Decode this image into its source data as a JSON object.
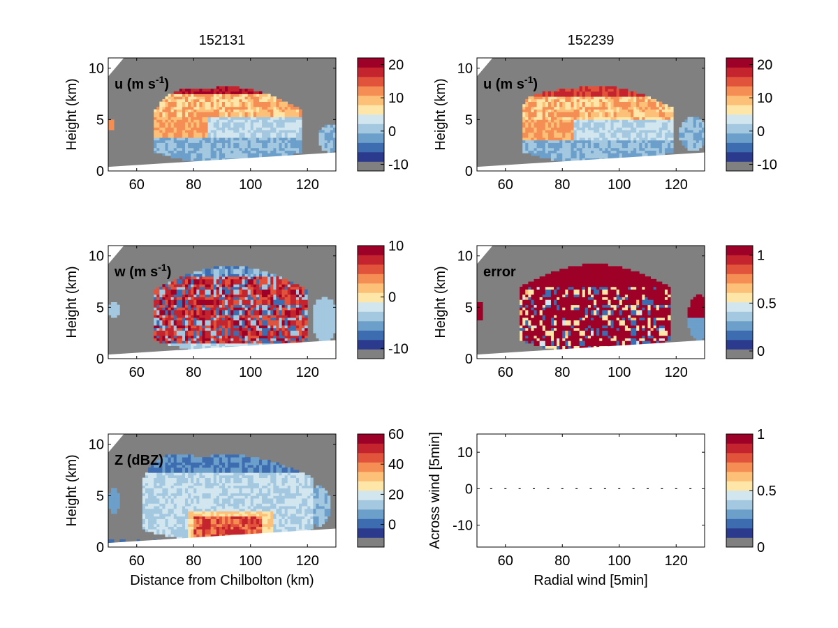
{
  "figure": {
    "titles": [
      "152131",
      "152239"
    ]
  },
  "colors": {
    "background_gray": "#808080",
    "scale": [
      "#808080",
      "#2b3a8c",
      "#3d6db0",
      "#6d9fcb",
      "#a3c8e0",
      "#d2e6ef",
      "#fde6a8",
      "#fdc079",
      "#f58e54",
      "#e2533b",
      "#c4242d",
      "#9e0127"
    ]
  },
  "chart_data": [
    {
      "id": "u-152131",
      "type": "heatmap",
      "title": "152131",
      "label": "u (m s",
      "label_sup": "-1",
      "label_end": ")",
      "xlabel": "",
      "ylabel": "Height (km)",
      "xlim": [
        50,
        130
      ],
      "ylim": [
        0,
        11
      ],
      "xticks": [
        "60",
        "80",
        "100",
        "120"
      ],
      "yticks": [
        "0",
        "5",
        "10"
      ],
      "colorbar": {
        "range": [
          -12,
          22
        ],
        "ticks": [
          -10,
          0,
          10,
          20
        ],
        "tick_labels": [
          "-10",
          "0",
          "10",
          "20"
        ]
      },
      "field": "u"
    },
    {
      "id": "u-152239",
      "type": "heatmap",
      "title": "152239",
      "label": "u (m s",
      "label_sup": "-1",
      "label_end": ")",
      "xlabel": "",
      "ylabel": "Height (km)",
      "xlim": [
        50,
        130
      ],
      "ylim": [
        0,
        11
      ],
      "xticks": [
        "60",
        "80",
        "100",
        "120"
      ],
      "yticks": [
        "0",
        "5",
        "10"
      ],
      "colorbar": {
        "range": [
          -12,
          22
        ],
        "ticks": [
          -10,
          0,
          10,
          20
        ],
        "tick_labels": [
          "-10",
          "0",
          "10",
          "20"
        ]
      },
      "field": "u2"
    },
    {
      "id": "w-152131",
      "type": "heatmap",
      "label": "w (m s",
      "label_sup": "-1",
      "label_end": ")",
      "xlabel": "",
      "ylabel": "Height (km)",
      "xlim": [
        50,
        130
      ],
      "ylim": [
        0,
        11
      ],
      "xticks": [
        "60",
        "80",
        "100",
        "120"
      ],
      "yticks": [
        "0",
        "5",
        "10"
      ],
      "colorbar": {
        "range": [
          -12,
          10
        ],
        "ticks": [
          -10,
          0,
          10
        ],
        "tick_labels": [
          "-10",
          "0",
          "10"
        ]
      },
      "field": "w"
    },
    {
      "id": "error-152239",
      "type": "heatmap",
      "label": "error",
      "label_sup": "",
      "label_end": "",
      "xlabel": "",
      "ylabel": "Height (km)",
      "xlim": [
        50,
        130
      ],
      "ylim": [
        0,
        11
      ],
      "xticks": [
        "60",
        "80",
        "100",
        "120"
      ],
      "yticks": [
        "0",
        "5",
        "10"
      ],
      "colorbar": {
        "range": [
          -0.08,
          1.1
        ],
        "ticks": [
          0,
          0.5,
          1
        ],
        "tick_labels": [
          "0",
          "0.5",
          "1"
        ]
      },
      "field": "error"
    },
    {
      "id": "z-152131",
      "type": "heatmap",
      "label": "Z (dBZ)",
      "label_sup": "",
      "label_end": "",
      "xlabel": "Distance from Chilbolton (km)",
      "ylabel": "Height (km)",
      "xlim": [
        50,
        130
      ],
      "ylim": [
        0,
        11
      ],
      "xticks": [
        "60",
        "80",
        "100",
        "120"
      ],
      "yticks": [
        "0",
        "5",
        "10"
      ],
      "colorbar": {
        "range": [
          -15,
          60
        ],
        "ticks": [
          0,
          20,
          40,
          60
        ],
        "tick_labels": [
          "0",
          "20",
          "40",
          "60"
        ]
      },
      "field": "z"
    },
    {
      "id": "wind-vectors",
      "type": "scatter",
      "label": "",
      "xlabel": "Radial wind [5min]",
      "ylabel": "Across wind [5min]",
      "xlim": [
        50,
        130
      ],
      "ylim": [
        -16,
        15
      ],
      "xticks": [
        "60",
        "80",
        "100",
        "120"
      ],
      "yticks": [
        "-10",
        "0",
        "10"
      ],
      "x": [
        55,
        60,
        65,
        70,
        75,
        80,
        85,
        90,
        95,
        100,
        105,
        110,
        115,
        120,
        125
      ],
      "y": [
        0,
        0,
        0,
        0,
        0,
        0,
        0,
        0,
        0,
        0,
        0,
        0,
        0,
        0,
        0
      ],
      "colorbar": {
        "range": [
          0,
          1
        ],
        "ticks": [
          0,
          0.5,
          1
        ],
        "tick_labels": [
          "0",
          "0.5",
          "1"
        ]
      },
      "field": "none"
    }
  ]
}
